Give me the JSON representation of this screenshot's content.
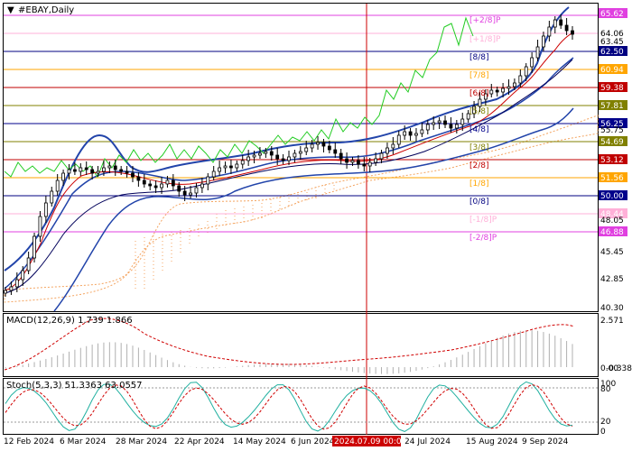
{
  "header": {
    "title": "#EBAY,Daily"
  },
  "price_axis": {
    "labels": [
      {
        "text": "65.62",
        "tag": true,
        "color": "#e040e0"
      },
      {
        "text": "64.06",
        "tag": false,
        "color": "#ffb0d8"
      },
      {
        "text": "63.45",
        "tag": false,
        "color": "#000000"
      },
      {
        "text": "62.50",
        "tag": true,
        "color": "#000080"
      },
      {
        "text": "60.94",
        "tag": true,
        "color": "#ffa500"
      },
      {
        "text": "59.38",
        "tag": true,
        "color": "#c00000"
      },
      {
        "text": "57.81",
        "tag": true,
        "color": "#808000"
      },
      {
        "text": "56.25",
        "tag": true,
        "color": "#00008b"
      },
      {
        "text": "55.75",
        "tag": false,
        "color": "#000000"
      },
      {
        "text": "54.69",
        "tag": true,
        "color": "#808000"
      },
      {
        "text": "53.12",
        "tag": true,
        "color": "#c00000"
      },
      {
        "text": "51.56",
        "tag": true,
        "color": "#ffa500"
      },
      {
        "text": "50.00",
        "tag": true,
        "color": "#00008b"
      },
      {
        "text": "48.44",
        "tag": true,
        "color": "#ffb0d8"
      },
      {
        "text": "48.05",
        "tag": false,
        "color": "#000000"
      },
      {
        "text": "46.88",
        "tag": true,
        "color": "#e040e0"
      },
      {
        "text": "45.45",
        "tag": false,
        "color": "#000000"
      },
      {
        "text": "42.85",
        "tag": false,
        "color": "#000000"
      },
      {
        "text": "40.30",
        "tag": false,
        "color": "#000000"
      }
    ]
  },
  "murrey_labels": [
    {
      "text": "[+2/8]P",
      "color": "#e040e0"
    },
    {
      "text": "[+1/8]P",
      "color": "#ffb0d8"
    },
    {
      "text": "[8/8]",
      "color": "#000080"
    },
    {
      "text": "[7/8]",
      "color": "#ffa500"
    },
    {
      "text": "[6/8]",
      "color": "#c00000"
    },
    {
      "text": "[5/8]",
      "color": "#808000"
    },
    {
      "text": "[4/8]",
      "color": "#00008b"
    },
    {
      "text": "[3/8]",
      "color": "#808000"
    },
    {
      "text": "[2/8]",
      "color": "#c00000"
    },
    {
      "text": "[1/8]",
      "color": "#ffa500"
    },
    {
      "text": "[0/8]",
      "color": "#000080"
    },
    {
      "text": "[-1/8]P",
      "color": "#ffb0d8"
    },
    {
      "text": "[-2/8]P",
      "color": "#e040e0"
    }
  ],
  "macd": {
    "title": "MACD(12,26,9) 1.739 1.866",
    "axis": [
      "2.571",
      "0.00",
      "-0.3389"
    ]
  },
  "stoch": {
    "title": "Stoch(5,3,3) 51.3363 63.0557",
    "axis": [
      "100",
      "80",
      "20",
      "0"
    ]
  },
  "time_axis": {
    "labels": [
      "12 Feb 2024",
      "6 Mar 2024",
      "28 Mar 2024",
      "22 Apr 2024",
      "14 May 2024",
      "6 Jun 2024",
      "24 Jul 2024",
      "15 Aug 2024",
      "9 Sep 2024"
    ],
    "highlight": "2024.07.09 00:00"
  },
  "colors": {
    "accent_red": "#cc0000",
    "ichimoku_cloud": "#f4a460",
    "bollinger": "#2244aa",
    "green_line": "#22cc22",
    "macd_signal": "#d00000",
    "macd_hist": "#b0b0b0"
  }
}
